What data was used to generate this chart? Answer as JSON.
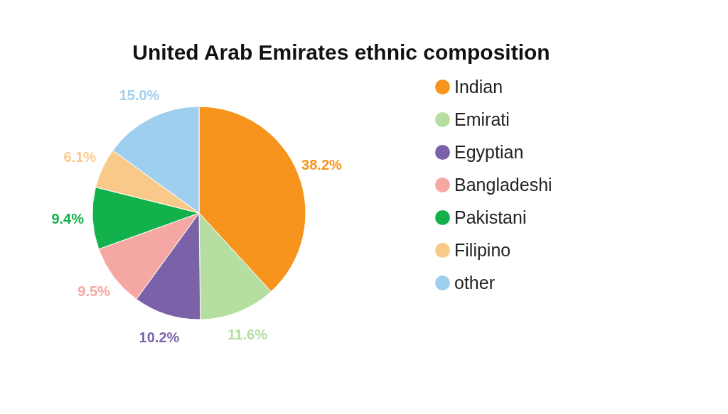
{
  "chart_data": {
    "type": "pie",
    "title": "United Arab Emirates ethnic composition",
    "categories": [
      "Indian",
      "Emirati",
      "Egyptian",
      "Bangladeshi",
      "Pakistani",
      "Filipino",
      "other"
    ],
    "values": [
      38.2,
      11.6,
      10.2,
      9.5,
      9.4,
      6.1,
      15.0
    ],
    "value_labels": [
      "38.2%",
      "11.6%",
      "10.2%",
      "9.5%",
      "9.4%",
      "6.1%",
      "15.0%"
    ],
    "colors": [
      "#f7941d",
      "#b5dea0",
      "#7b62a8",
      "#f4a7a3",
      "#13b14b",
      "#f9c98a",
      "#9fcfee"
    ],
    "legend": "right"
  }
}
